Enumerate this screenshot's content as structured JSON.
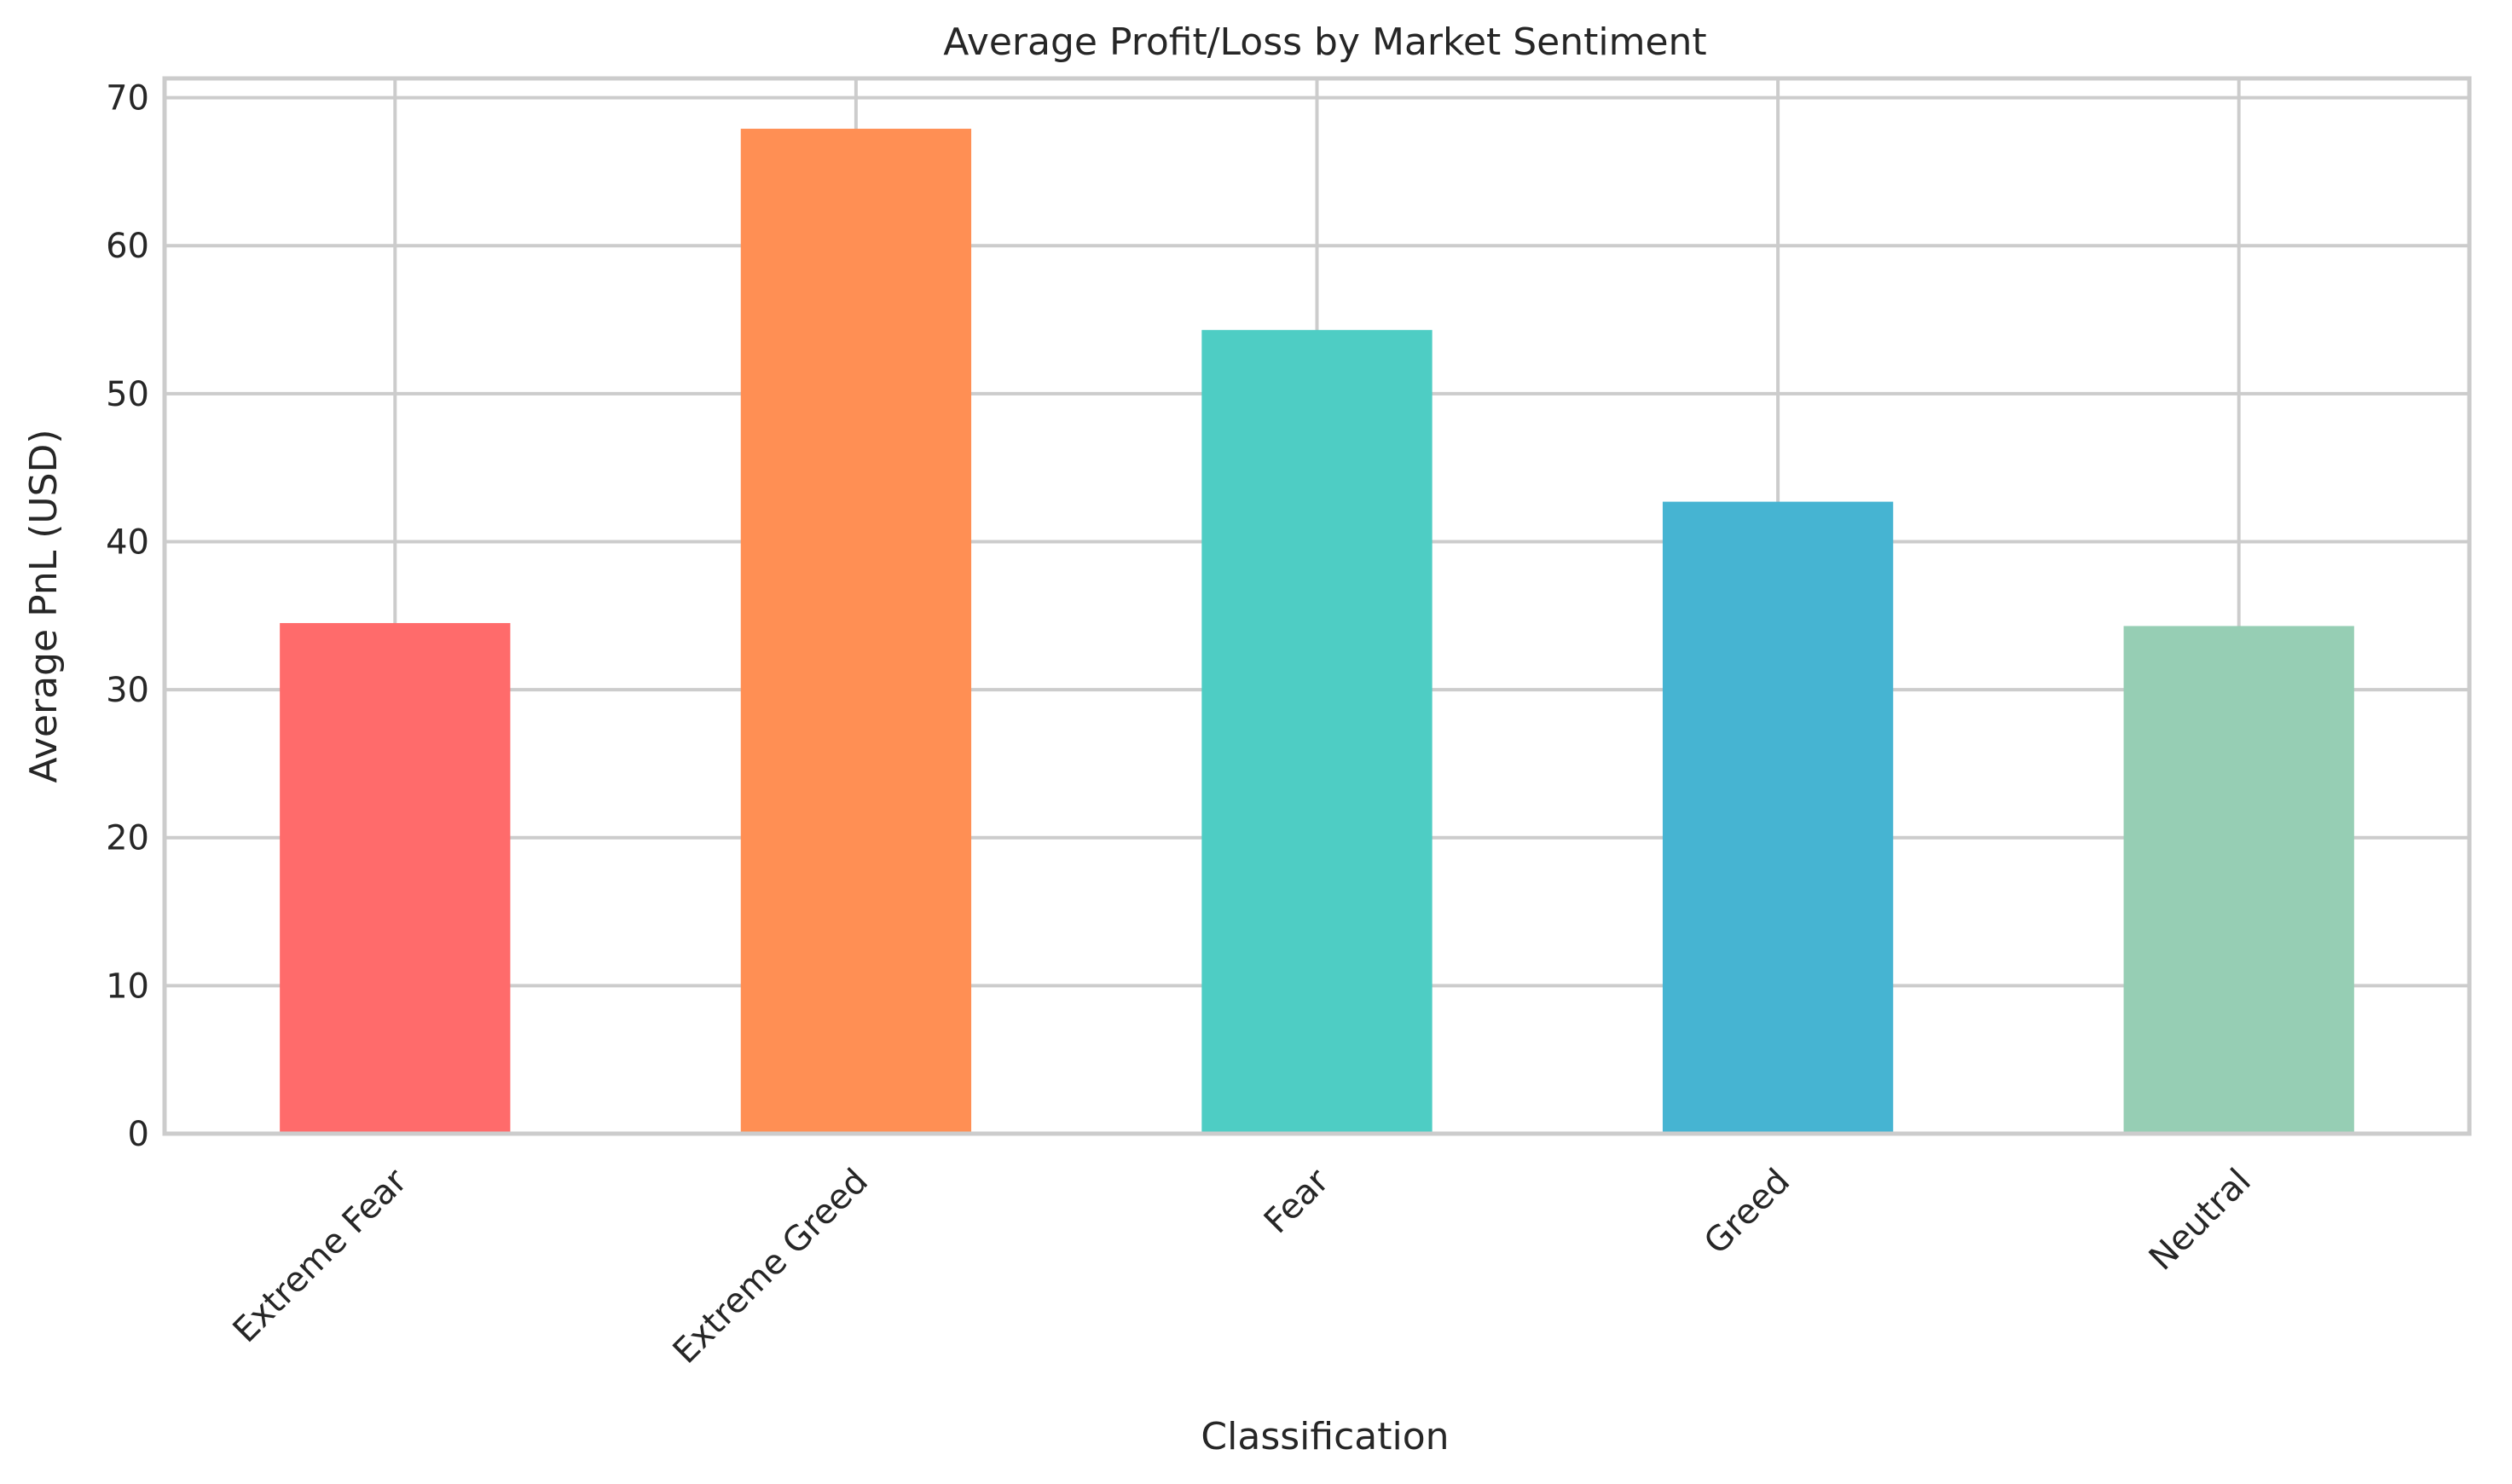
{
  "chart_data": {
    "type": "bar",
    "title": "Average Profit/Loss by Market Sentiment",
    "xlabel": "Classification",
    "ylabel": "Average PnL (USD)",
    "categories": [
      "Extreme Fear",
      "Extreme Greed",
      "Fear",
      "Greed",
      "Neutral"
    ],
    "values": [
      34.5,
      67.9,
      54.3,
      42.7,
      34.3
    ],
    "colors": [
      "#ff6b6b",
      "#ff8f54",
      "#4ecdc4",
      "#46b4d2",
      "#96ceb4"
    ],
    "ylim": [
      0,
      71.3
    ],
    "yticks": [
      0,
      10,
      20,
      30,
      40,
      50,
      60,
      70
    ],
    "grid": true,
    "legend": "none"
  }
}
